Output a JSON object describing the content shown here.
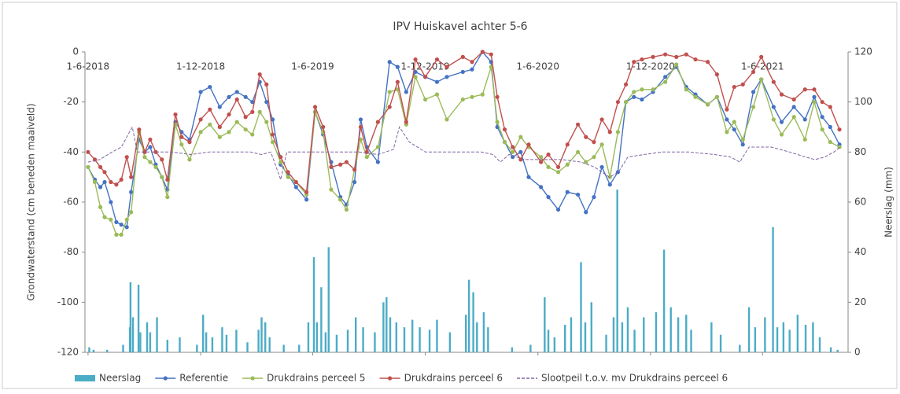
{
  "chart_data": {
    "type": "line",
    "title": "IPV Huiskavel achter 5-6",
    "ylabel": "Grondwaterstand (cm beneden maaiveld)",
    "y2label": "Neerslag (mm)",
    "xlim": [
      "2018-05-27",
      "2021-10-18"
    ],
    "xticks": [
      {
        "value": "2018-06-01",
        "label": "1-6-2018"
      },
      {
        "value": "2018-12-01",
        "label": "1-12-2018"
      },
      {
        "value": "2019-06-01",
        "label": "1-6-2019"
      },
      {
        "value": "2019-12-01",
        "label": "1-12-2019"
      },
      {
        "value": "2020-06-01",
        "label": "1-6-2020"
      },
      {
        "value": "2020-12-01",
        "label": "1-12-2020"
      },
      {
        "value": "2021-06-01",
        "label": "1-6-2021"
      }
    ],
    "ylim": [
      -120,
      0
    ],
    "yticks": [
      -120,
      -100,
      -80,
      -60,
      -40,
      -20,
      0
    ],
    "y2lim": [
      0,
      120
    ],
    "y2ticks": [
      0,
      20,
      40,
      60,
      80,
      100,
      120
    ],
    "x": [
      "2018-06-01",
      "2018-06-12",
      "2018-06-21",
      "2018-06-28",
      "2018-07-08",
      "2018-07-17",
      "2018-07-25",
      "2018-08-03",
      "2018-08-10",
      "2018-08-23",
      "2018-09-01",
      "2018-09-10",
      "2018-09-19",
      "2018-09-29",
      "2018-10-08",
      "2018-10-21",
      "2018-10-31",
      "2018-11-13",
      "2018-12-01",
      "2018-12-16",
      "2019-01-01",
      "2019-01-16",
      "2019-01-29",
      "2019-02-12",
      "2019-02-23",
      "2019-03-07",
      "2019-03-18",
      "2019-03-28",
      "2019-04-10",
      "2019-04-22",
      "2019-05-05",
      "2019-05-22",
      "2019-06-05",
      "2019-06-18",
      "2019-07-01",
      "2019-07-16",
      "2019-07-26",
      "2019-08-08",
      "2019-08-18",
      "2019-08-28",
      "2019-09-15",
      "2019-10-04",
      "2019-10-17",
      "2019-10-31",
      "2019-11-15",
      "2019-12-01",
      "2019-12-20",
      "2020-01-05",
      "2020-01-31",
      "2020-02-15",
      "2020-03-03",
      "2020-03-17",
      "2020-03-27",
      "2020-04-08",
      "2020-04-21",
      "2020-05-04",
      "2020-05-17",
      "2020-06-06",
      "2020-06-18",
      "2020-07-04",
      "2020-07-19",
      "2020-08-05",
      "2020-08-18",
      "2020-08-31",
      "2020-09-13",
      "2020-09-26",
      "2020-10-09",
      "2020-10-22",
      "2020-11-04",
      "2020-11-17",
      "2020-12-05",
      "2020-12-25",
      "2021-01-12",
      "2021-01-28",
      "2021-02-12",
      "2021-03-04",
      "2021-03-19",
      "2021-04-04",
      "2021-04-16",
      "2021-04-30",
      "2021-05-17",
      "2021-05-30",
      "2021-06-19",
      "2021-07-02",
      "2021-07-22",
      "2021-08-09",
      "2021-08-24",
      "2021-09-06",
      "2021-09-19",
      "2021-10-04"
    ],
    "series": [
      {
        "name": "Neerslag",
        "type": "bar",
        "axis": "y2",
        "color": "#4bacc6",
        "x": [
          "2018-06-03",
          "2018-06-10",
          "2018-07-02",
          "2018-07-28",
          "2018-08-08",
          "2018-08-09",
          "2018-08-13",
          "2018-08-22",
          "2018-08-25",
          "2018-09-05",
          "2018-09-10",
          "2018-09-21",
          "2018-10-08",
          "2018-10-28",
          "2018-11-25",
          "2018-12-05",
          "2018-12-10",
          "2018-12-20",
          "2019-01-05",
          "2019-01-12",
          "2019-01-28",
          "2019-02-15",
          "2019-03-05",
          "2019-03-10",
          "2019-03-16",
          "2019-03-23",
          "2019-04-15",
          "2019-05-10",
          "2019-05-25",
          "2019-06-03",
          "2019-06-08",
          "2019-06-15",
          "2019-06-22",
          "2019-06-27",
          "2019-07-10",
          "2019-07-28",
          "2019-08-10",
          "2019-08-22",
          "2019-09-10",
          "2019-09-24",
          "2019-09-29",
          "2019-10-05",
          "2019-10-15",
          "2019-10-28",
          "2019-11-10",
          "2019-11-22",
          "2019-12-08",
          "2019-12-20",
          "2020-01-10",
          "2020-02-05",
          "2020-02-10",
          "2020-02-17",
          "2020-02-23",
          "2020-03-05",
          "2020-03-12",
          "2020-04-20",
          "2020-05-20",
          "2020-06-12",
          "2020-06-18",
          "2020-06-28",
          "2020-07-15",
          "2020-07-25",
          "2020-08-10",
          "2020-08-17",
          "2020-08-27",
          "2020-09-20",
          "2020-10-02",
          "2020-10-08",
          "2020-10-16",
          "2020-10-25",
          "2020-11-05",
          "2020-11-20",
          "2020-12-10",
          "2020-12-23",
          "2021-01-03",
          "2021-01-15",
          "2021-01-28",
          "2021-02-05",
          "2021-03-10",
          "2021-03-25",
          "2021-04-25",
          "2021-05-10",
          "2021-05-20",
          "2021-06-05",
          "2021-06-18",
          "2021-06-25",
          "2021-07-05",
          "2021-07-15",
          "2021-07-28",
          "2021-08-10",
          "2021-08-22",
          "2021-09-02",
          "2021-09-20",
          "2021-10-01"
        ],
        "values": [
          2,
          1,
          1,
          3,
          10,
          28,
          14,
          27,
          8,
          12,
          8,
          14,
          5,
          6,
          3,
          15,
          8,
          6,
          10,
          7,
          9,
          4,
          9,
          14,
          12,
          6,
          3,
          3,
          12,
          38,
          12,
          26,
          8,
          42,
          7,
          9,
          14,
          10,
          8,
          20,
          22,
          14,
          12,
          10,
          13,
          10,
          9,
          13,
          8,
          15,
          29,
          24,
          12,
          16,
          10,
          2,
          3,
          22,
          9,
          6,
          11,
          14,
          36,
          12,
          20,
          7,
          14,
          65,
          12,
          18,
          9,
          14,
          16,
          41,
          18,
          14,
          15,
          9,
          12,
          7,
          3,
          18,
          10,
          14,
          50,
          10,
          12,
          9,
          15,
          11,
          12,
          6,
          2,
          1
        ]
      },
      {
        "name": "Referentie",
        "color": "#4472c4",
        "markers": true,
        "values": [
          -46,
          -51,
          -54,
          -52,
          -60,
          -68,
          -69,
          -70,
          -56,
          -35,
          -40,
          -38,
          -45,
          -50,
          -55,
          -28,
          -32,
          -35,
          -16,
          -14,
          -22,
          -18,
          -16,
          -18,
          -20,
          -12,
          -20,
          -27,
          -45,
          -49,
          -54,
          -59,
          -24,
          -33,
          -44,
          -58,
          -61,
          -52,
          -27,
          -38,
          -44,
          -4,
          -6,
          -16,
          -8,
          -10,
          -12,
          -10,
          -8,
          -7,
          0,
          -4,
          -30,
          -36,
          -42,
          -40,
          -50,
          -54,
          -58,
          -63,
          -56,
          -57,
          -64,
          -58,
          -46,
          -53,
          -48,
          -20,
          -18,
          -19,
          -16,
          -10,
          -6,
          -14,
          -17,
          -21,
          -18,
          -27,
          -31,
          -37,
          -16,
          -11,
          -22,
          -28,
          -22,
          -27,
          -18,
          -26,
          -30,
          -37
        ]
      },
      {
        "name": "Drukdrains perceel 5",
        "color": "#9bbb59",
        "markers": true,
        "values": [
          -46,
          -52,
          -62,
          -66,
          -67,
          -73,
          -73,
          -67,
          -64,
          -32,
          -42,
          -44,
          -46,
          -50,
          -58,
          -29,
          -37,
          -43,
          -32,
          -29,
          -34,
          -32,
          -28,
          -31,
          -33,
          -24,
          -28,
          -36,
          -44,
          -50,
          -52,
          -57,
          -24,
          -32,
          -55,
          -59,
          -63,
          -47,
          -35,
          -42,
          -38,
          -16,
          -15,
          -29,
          -10,
          -19,
          -17,
          -27,
          -19,
          -18,
          -17,
          -6,
          -28,
          -36,
          -40,
          -34,
          -38,
          -42,
          -46,
          -48,
          -45,
          -40,
          -44,
          -42,
          -37,
          -50,
          -32,
          -20,
          -16,
          -15,
          -15,
          -12,
          -5,
          -15,
          -18,
          -21,
          -18,
          -32,
          -28,
          -35,
          -22,
          -11,
          -27,
          -33,
          -26,
          -35,
          -20,
          -31,
          -36,
          -38
        ]
      },
      {
        "name": "Drukdrains perceel 6",
        "color": "#c0504d",
        "markers": true,
        "values": [
          -40,
          -43,
          -46,
          -48,
          -52,
          -53,
          -51,
          -42,
          -50,
          -31,
          -40,
          -35,
          -40,
          -43,
          -51,
          -25,
          -34,
          -36,
          -27,
          -23,
          -30,
          -25,
          -19,
          -26,
          -24,
          -9,
          -13,
          -33,
          -42,
          -48,
          -52,
          -56,
          -22,
          -30,
          -46,
          -45,
          -44,
          -47,
          -30,
          -40,
          -28,
          -22,
          -12,
          -28,
          -3,
          -10,
          -3,
          -6,
          -2,
          -4,
          0,
          -1,
          -18,
          -31,
          -38,
          -43,
          -37,
          -44,
          -41,
          -46,
          -37,
          -29,
          -34,
          -36,
          -27,
          -32,
          -20,
          -13,
          -4,
          -3,
          -2,
          -1,
          -2,
          -1,
          -3,
          -4,
          -9,
          -23,
          -14,
          -13,
          -8,
          -2,
          -12,
          -17,
          -19,
          -15,
          -15,
          -20,
          -22,
          -31
        ]
      },
      {
        "name": "Slootpeil t.o.v. mv Drukdrains perceel 6",
        "color": "#8064a2",
        "dash": true,
        "x": [
          "2018-06-01",
          "2018-06-20",
          "2018-07-10",
          "2018-07-25",
          "2018-08-05",
          "2018-08-12",
          "2018-08-20",
          "2018-09-15",
          "2018-10-15",
          "2018-11-15",
          "2018-12-15",
          "2019-01-20",
          "2019-02-20",
          "2019-03-10",
          "2019-03-25",
          "2019-04-10",
          "2019-04-20",
          "2019-06-01",
          "2019-07-15",
          "2019-08-15",
          "2019-09-15",
          "2019-10-10",
          "2019-10-20",
          "2019-11-05",
          "2019-12-01",
          "2020-01-15",
          "2020-03-01",
          "2020-03-20",
          "2020-04-01",
          "2020-04-15",
          "2020-05-10",
          "2020-06-10",
          "2020-07-10",
          "2020-08-10",
          "2020-09-01",
          "2020-09-25",
          "2020-10-10",
          "2020-10-25",
          "2020-11-20",
          "2020-12-20",
          "2021-02-01",
          "2021-03-15",
          "2021-04-10",
          "2021-04-25",
          "2021-05-10",
          "2021-06-15",
          "2021-07-15",
          "2021-08-10",
          "2021-08-25",
          "2021-09-10",
          "2021-09-25",
          "2021-10-05"
        ],
        "values": [
          -44,
          -43,
          -40,
          -38,
          -33,
          -30,
          -40,
          -40,
          -40,
          -41,
          -40,
          -40,
          -40,
          -41,
          -40,
          -51,
          -40,
          -40,
          -40,
          -40,
          -41,
          -39,
          -30,
          -36,
          -40,
          -40,
          -40,
          -41,
          -44,
          -41,
          -43,
          -43,
          -43,
          -44,
          -46,
          -50,
          -48,
          -42,
          -41,
          -40,
          -40,
          -41,
          -42,
          -44,
          -38,
          -38,
          -40,
          -42,
          -43,
          -42,
          -40,
          -38
        ]
      }
    ]
  }
}
